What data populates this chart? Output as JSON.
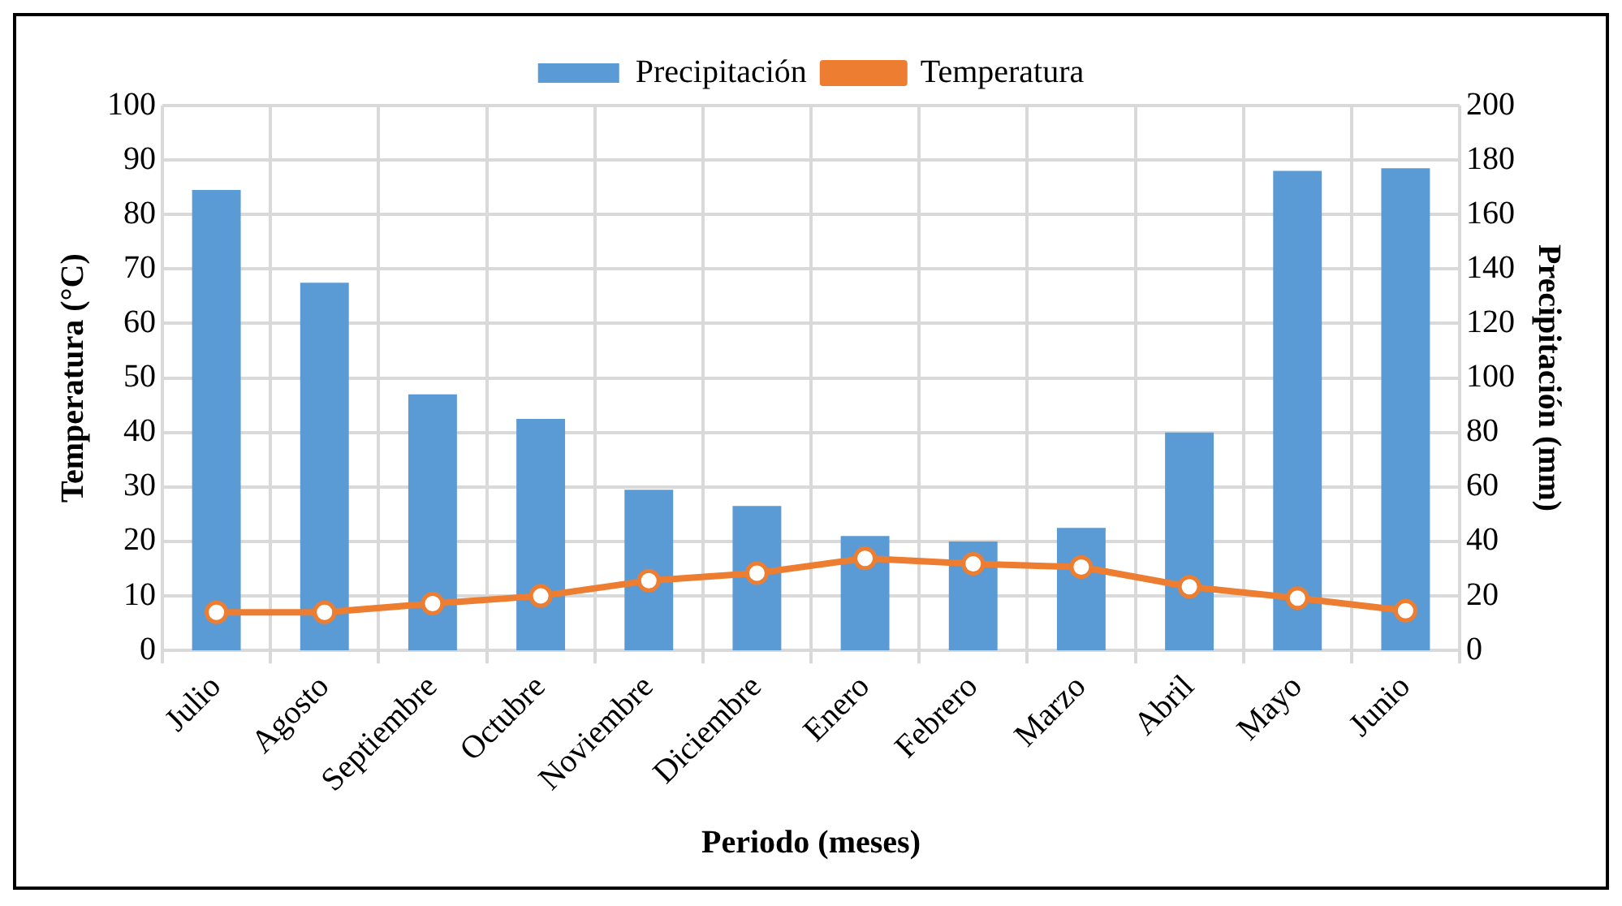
{
  "chart_data": {
    "type": "bar",
    "xlabel": "Periodo (meses)",
    "ylabel": "Temperatura (°C)",
    "y2label": "Precipitación (mm)",
    "categories": [
      "Julio",
      "Agosto",
      "Septiembre",
      "Octubre",
      "Noviembre",
      "Diciembre",
      "Enero",
      "Febrero",
      "Marzo",
      "Abril",
      "Mayo",
      "Junio"
    ],
    "series": [
      {
        "name": "Precipitación",
        "axis": "y2",
        "color": "#5b9bd5",
        "values": [
          169,
          135,
          94,
          85,
          59,
          53,
          42,
          40,
          45,
          80,
          176,
          177
        ]
      },
      {
        "name": "Temperatura",
        "type": "line",
        "color": "#ed7d31",
        "marker": "circle",
        "values": [
          7,
          7,
          8.6,
          10,
          12.8,
          14.2,
          16.9,
          15.9,
          15.3,
          11.7,
          9.6,
          7.3
        ]
      }
    ],
    "ylim": [
      0,
      100
    ],
    "yticks": [
      0,
      10,
      20,
      30,
      40,
      50,
      60,
      70,
      80,
      90,
      100
    ],
    "y2lim": [
      0,
      200
    ],
    "y2ticks": [
      0,
      20,
      40,
      60,
      80,
      100,
      120,
      140,
      160,
      180,
      200
    ],
    "grid": true,
    "legend": "top"
  }
}
